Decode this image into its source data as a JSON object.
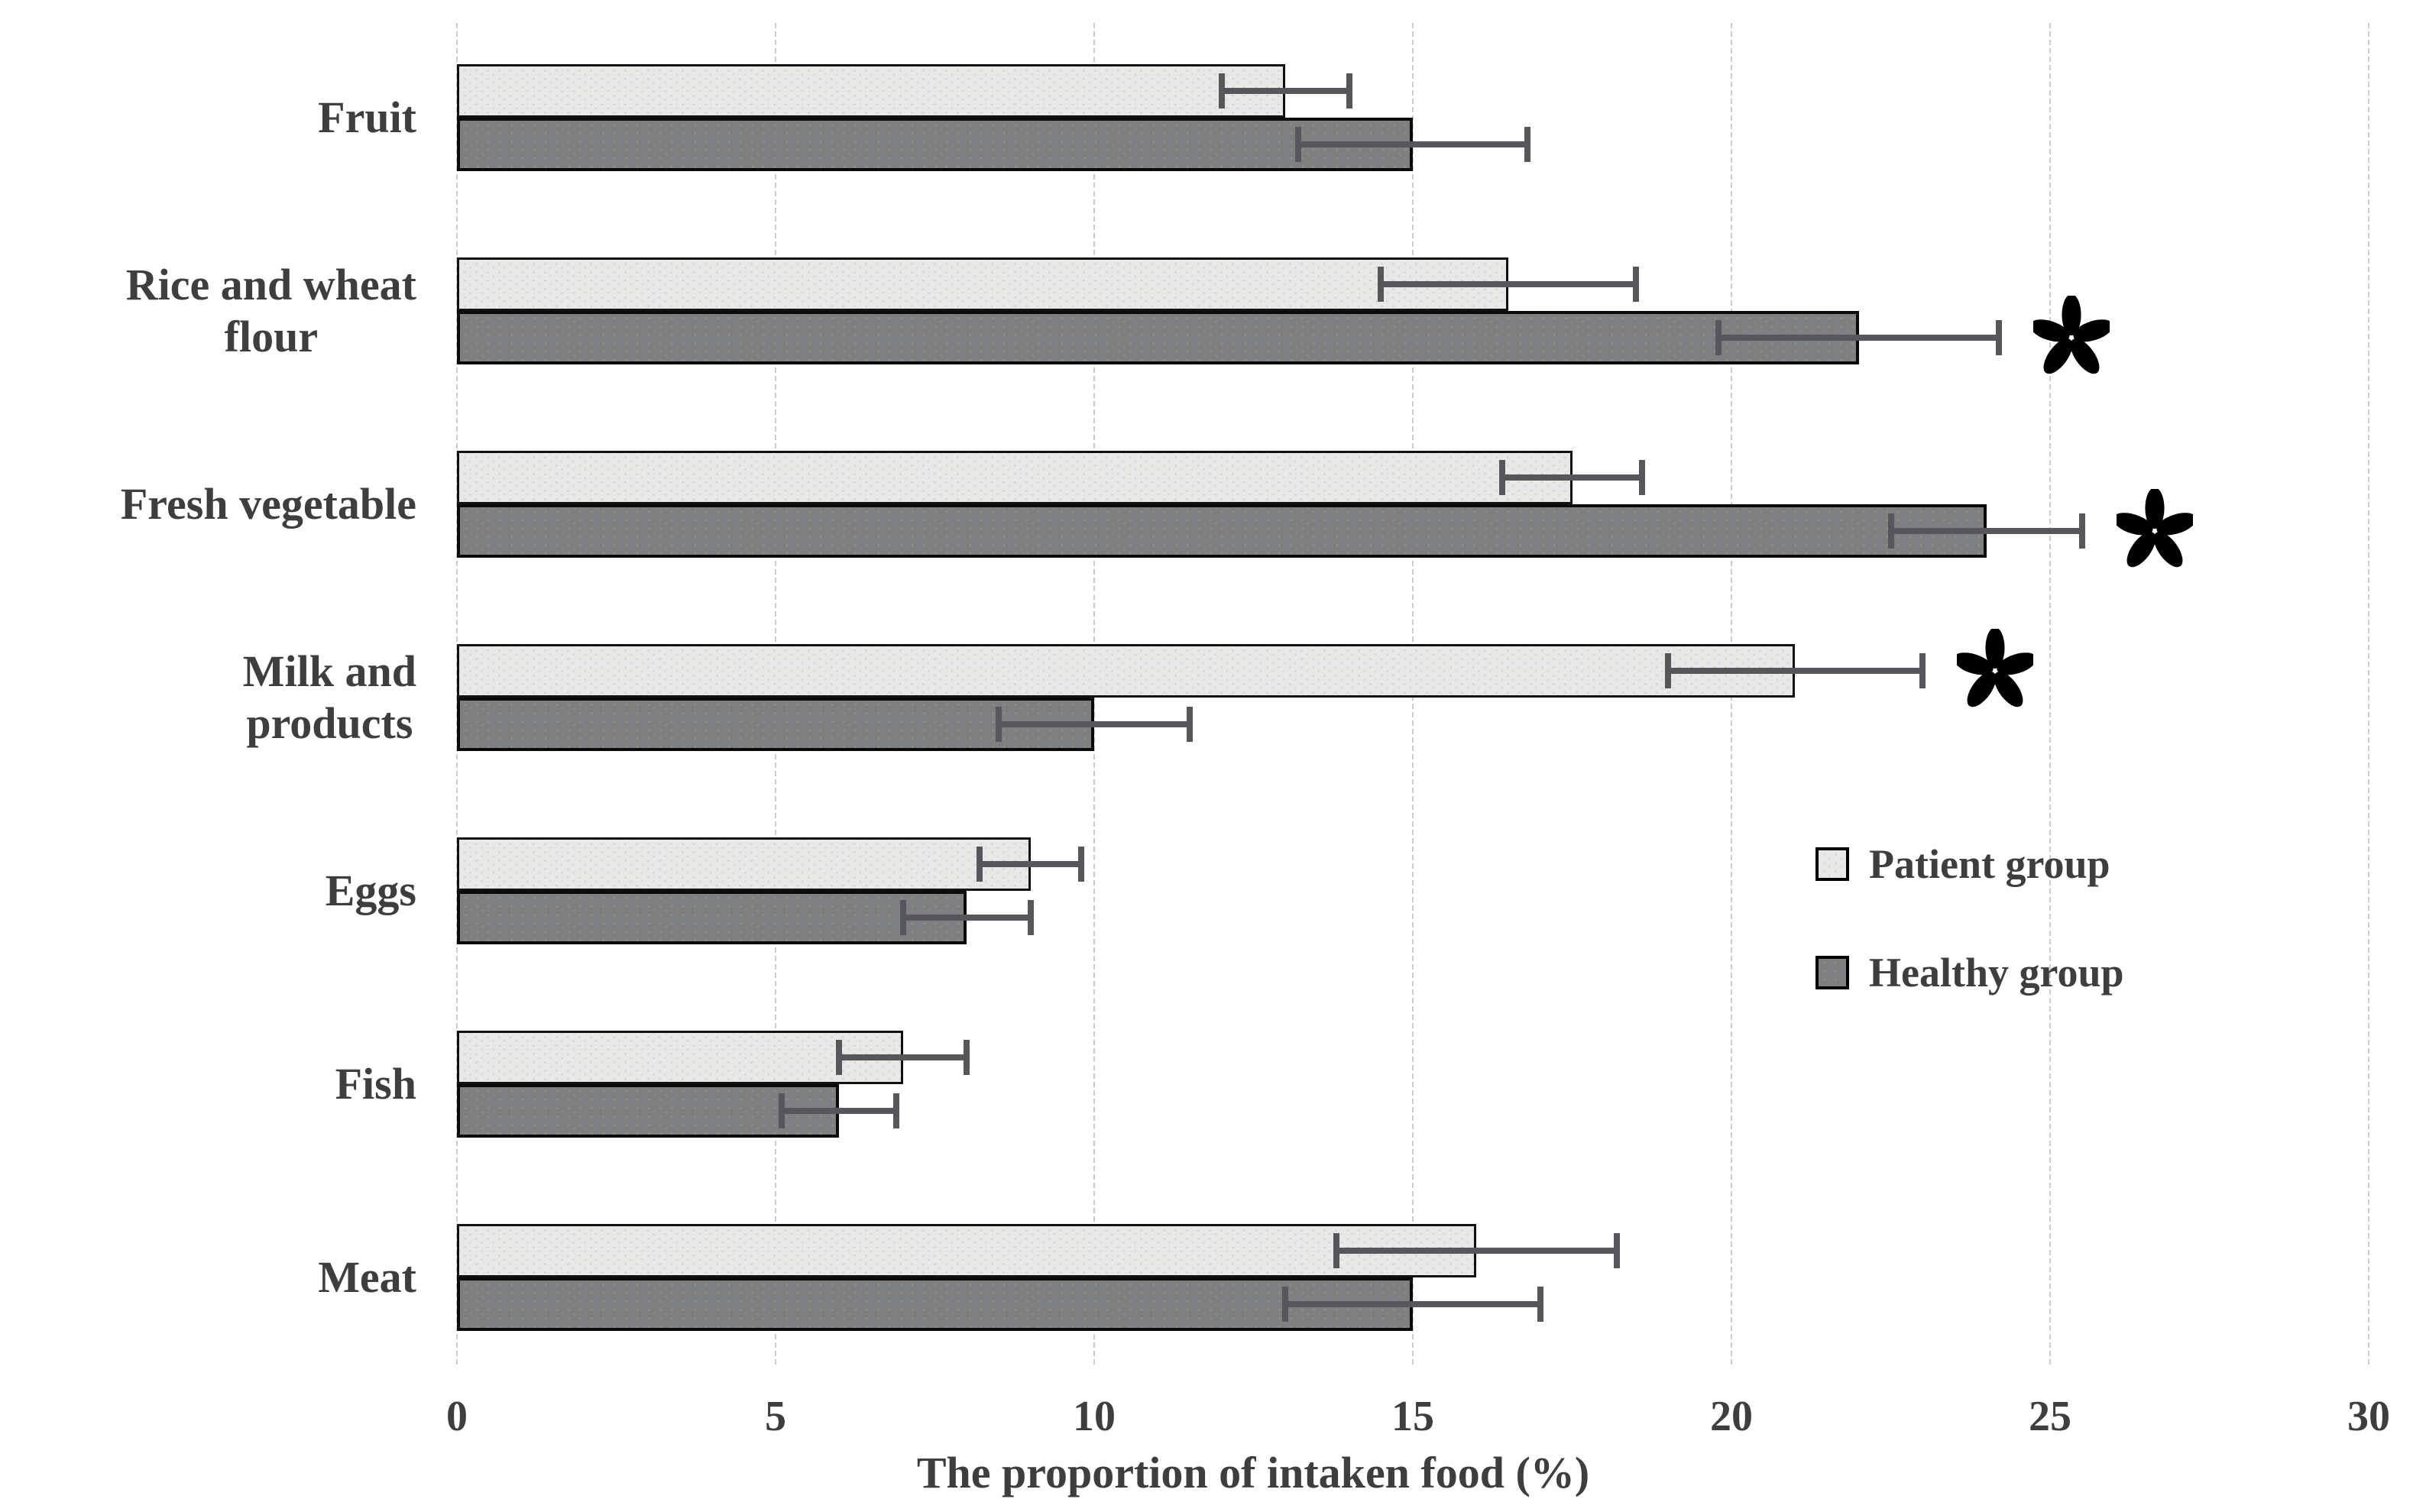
{
  "figure": {
    "background": "#ffffff",
    "text_color": "#3d3e40",
    "gridline_color": "#cccccc",
    "errorbar_color": "#55575a",
    "significance_marker": "*"
  },
  "legend": {
    "position": "middle-right",
    "items": [
      {
        "label": "Patient group",
        "color": "#e8e9e6"
      },
      {
        "label": "Healthy group",
        "color": "#7d7f81"
      }
    ]
  },
  "chart_data": {
    "type": "bar",
    "orientation": "horizontal",
    "title": "",
    "xlabel": "The proportion of intaken food (%)",
    "ylabel": "",
    "xlim": [
      0,
      30
    ],
    "xticks": [
      0,
      5,
      10,
      15,
      20,
      25,
      30
    ],
    "grid": "vertical",
    "categories": [
      "Fruit",
      "Rice and wheat flour",
      "Fresh vegetable",
      "Milk and products",
      "Eggs",
      "Fish",
      "Meat"
    ],
    "series": [
      {
        "name": "Patient group",
        "color": "#e8e9e6",
        "values": [
          13,
          16.5,
          17.5,
          21,
          9,
          7,
          16
        ],
        "errors": [
          1.0,
          2.0,
          1.1,
          2.0,
          0.8,
          1.0,
          2.2
        ]
      },
      {
        "name": "Healthy group",
        "color": "#7d7f81",
        "values": [
          15,
          22,
          24,
          10,
          8,
          6,
          15
        ],
        "errors": [
          1.8,
          2.2,
          1.5,
          1.5,
          1.0,
          0.9,
          2.0
        ]
      }
    ],
    "significance": [
      {
        "category": "Rice and wheat flour",
        "series": "Healthy group"
      },
      {
        "category": "Fresh vegetable",
        "series": "Healthy group"
      },
      {
        "category": "Milk and products",
        "series": "Patient group"
      }
    ]
  }
}
